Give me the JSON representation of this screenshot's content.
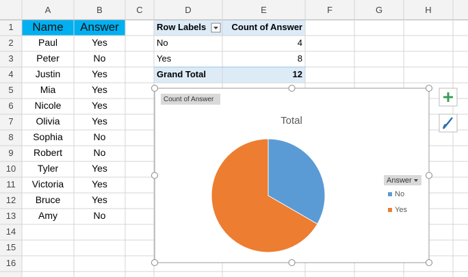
{
  "columns": [
    "A",
    "B",
    "C",
    "D",
    "E",
    "F",
    "G",
    "H"
  ],
  "row_numbers": [
    1,
    2,
    3,
    4,
    5,
    6,
    7,
    8,
    9,
    10,
    11,
    12,
    13,
    14,
    15,
    16
  ],
  "sheet": {
    "headers": [
      "Name",
      "Answer"
    ],
    "rows": [
      [
        "Paul",
        "Yes"
      ],
      [
        "Peter",
        "No"
      ],
      [
        "Justin",
        "Yes"
      ],
      [
        "Mia",
        "Yes"
      ],
      [
        "Nicole",
        "Yes"
      ],
      [
        "Olivia",
        "Yes"
      ],
      [
        "Sophia",
        "No"
      ],
      [
        "Robert",
        "No"
      ],
      [
        "Tyler",
        "Yes"
      ],
      [
        "Victoria",
        "Yes"
      ],
      [
        "Bruce",
        "Yes"
      ],
      [
        "Amy",
        "No"
      ]
    ]
  },
  "pivot": {
    "headers": [
      "Row Labels",
      "Count of Answer"
    ],
    "rows": [
      [
        "No",
        4
      ],
      [
        "Yes",
        8
      ]
    ],
    "total": [
      "Grand Total",
      12
    ]
  },
  "chart": {
    "type": "pie",
    "field_button": "Count of Answer",
    "title": "Total",
    "legend_title": "Answer",
    "colors": [
      "#5b9bd5",
      "#ed7d31"
    ]
  }
}
